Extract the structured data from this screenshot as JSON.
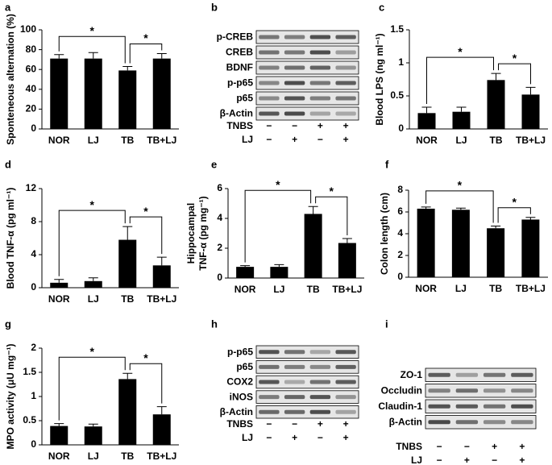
{
  "chart_data": [
    {
      "type": "bar",
      "panel": "a",
      "ylabel": "Sponteneous alternation (%)",
      "categories": [
        "NOR",
        "LJ",
        "TB",
        "TB+LJ"
      ],
      "values": [
        71,
        71,
        59,
        71
      ],
      "errors": [
        4,
        6,
        4,
        5
      ],
      "color": "#000000",
      "ylim": [
        0,
        100
      ],
      "yticks": [
        0,
        20,
        40,
        60,
        80,
        100
      ],
      "annotations": [
        {
          "text": "*",
          "between": [
            "NOR",
            "TB"
          ]
        },
        {
          "text": "*",
          "between": [
            "TB",
            "TB+LJ"
          ]
        }
      ]
    },
    {
      "type": "bar",
      "panel": "c",
      "ylabel": "Blood LPS (ng ml⁻¹)",
      "categories": [
        "NOR",
        "LJ",
        "TB",
        "TB+LJ"
      ],
      "values": [
        0.24,
        0.26,
        0.74,
        0.52
      ],
      "errors": [
        0.09,
        0.07,
        0.1,
        0.11
      ],
      "color": "#000000",
      "ylim": [
        0,
        1.5
      ],
      "yticks": [
        0,
        0.5,
        1,
        1.5
      ],
      "annotations": [
        {
          "text": "*",
          "between": [
            "NOR",
            "TB"
          ]
        },
        {
          "text": "*",
          "between": [
            "TB",
            "TB+LJ"
          ]
        }
      ]
    },
    {
      "type": "bar",
      "panel": "d",
      "ylabel": "Blood TNF-α (pg ml⁻¹)",
      "categories": [
        "NOR",
        "LJ",
        "TB",
        "TB+LJ"
      ],
      "values": [
        0.6,
        0.8,
        5.8,
        2.7
      ],
      "errors": [
        0.4,
        0.4,
        1.6,
        1.0
      ],
      "color": "#000000",
      "ylim": [
        0,
        12
      ],
      "yticks": [
        0,
        4,
        8,
        12
      ],
      "annotations": [
        {
          "text": "*",
          "between": [
            "NOR",
            "TB"
          ]
        },
        {
          "text": "*",
          "between": [
            "TB",
            "TB+LJ"
          ]
        }
      ]
    },
    {
      "type": "bar",
      "panel": "e",
      "ylabel": [
        "Hippocampal",
        "TNF-α (pg mg⁻¹)"
      ],
      "categories": [
        "NOR",
        "LJ",
        "TB",
        "TB+LJ"
      ],
      "values": [
        0.75,
        0.75,
        4.3,
        2.35
      ],
      "errors": [
        0.08,
        0.15,
        0.5,
        0.3
      ],
      "color": "#000000",
      "ylim": [
        0,
        6
      ],
      "yticks": [
        0,
        2,
        4,
        6
      ],
      "annotations": [
        {
          "text": "*",
          "between": [
            "NOR",
            "TB"
          ]
        },
        {
          "text": "*",
          "between": [
            "TB",
            "TB+LJ"
          ]
        }
      ]
    },
    {
      "type": "bar",
      "panel": "f",
      "ylabel": "Colon length (cm)",
      "categories": [
        "NOR",
        "LJ",
        "TB",
        "TB+LJ"
      ],
      "values": [
        6.3,
        6.2,
        4.5,
        5.3
      ],
      "errors": [
        0.15,
        0.15,
        0.2,
        0.2
      ],
      "color": "#000000",
      "ylim": [
        0,
        8
      ],
      "yticks": [
        0,
        2,
        4,
        6,
        8
      ],
      "annotations": [
        {
          "text": "*",
          "between": [
            "NOR",
            "TB"
          ]
        },
        {
          "text": "*",
          "between": [
            "TB",
            "TB+LJ"
          ]
        }
      ]
    },
    {
      "type": "bar",
      "panel": "g",
      "ylabel": "MPO activity (μU mg⁻¹)",
      "categories": [
        "NOR",
        "LJ",
        "TB",
        "TB+LJ"
      ],
      "values": [
        0.39,
        0.38,
        1.36,
        0.63
      ],
      "errors": [
        0.05,
        0.05,
        0.12,
        0.16
      ],
      "color": "#000000",
      "ylim": [
        0,
        2
      ],
      "yticks": [
        0,
        0.5,
        1,
        1.5,
        2
      ],
      "annotations": [
        {
          "text": "*",
          "between": [
            "NOR",
            "TB"
          ]
        },
        {
          "text": "*",
          "between": [
            "TB",
            "TB+LJ"
          ]
        }
      ]
    }
  ],
  "blots": [
    {
      "panel": "b",
      "rows": [
        "p-CREB",
        "CREB",
        "BDNF",
        "p-p65",
        "p65",
        "β-Actin"
      ],
      "treatments": [
        {
          "name": "TNBS",
          "signs": [
            "−",
            "−",
            "+",
            "+"
          ]
        },
        {
          "name": "LJ",
          "signs": [
            "−",
            "+",
            "−",
            "+"
          ]
        }
      ]
    },
    {
      "panel": "h",
      "rows": [
        "p-p65",
        "p65",
        "COX2",
        "iNOS",
        "β-Actin"
      ],
      "treatments": [
        {
          "name": "TNBS",
          "signs": [
            "−",
            "−",
            "+",
            "+"
          ]
        },
        {
          "name": "LJ",
          "signs": [
            "−",
            "+",
            "−",
            "+"
          ]
        }
      ]
    },
    {
      "panel": "i",
      "rows": [
        "ZO-1",
        "Occludin",
        "Claudin-1",
        "β-Actin"
      ],
      "treatments": [
        {
          "name": "TNBS",
          "signs": [
            "−",
            "−",
            "+",
            "+"
          ]
        },
        {
          "name": "LJ",
          "signs": [
            "−",
            "+",
            "−",
            "+"
          ]
        }
      ]
    }
  ]
}
